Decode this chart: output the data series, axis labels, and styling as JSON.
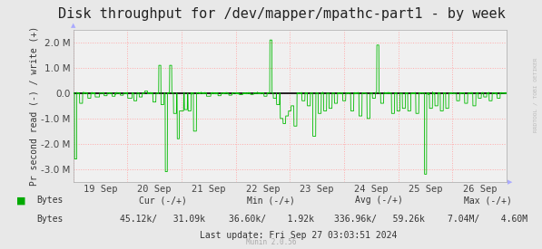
{
  "title": "Disk throughput for /dev/mapper/mpathc-part1 - by week",
  "ylabel": "Pr second read (-) / write (+)",
  "bg_color": "#e8e8e8",
  "plot_bg_color": "#f0f0f0",
  "grid_color": "#ffaaaa",
  "line_color": "#00bb00",
  "zero_line_color": "#000000",
  "ylim": [
    -3500000,
    2500000
  ],
  "yticks": [
    -3000000,
    -2000000,
    -1000000,
    0,
    1000000,
    2000000
  ],
  "ytick_labels": [
    "-3.0 M",
    "-2.0 M",
    "-1.0 M",
    "0.0",
    "1.0 M",
    "2.0 M"
  ],
  "xtick_labels": [
    "19 Sep",
    "20 Sep",
    "21 Sep",
    "22 Sep",
    "23 Sep",
    "24 Sep",
    "25 Sep",
    "26 Sep"
  ],
  "legend_label": "Bytes",
  "legend_color": "#00aa00",
  "cur_label": "Cur (-/+)",
  "min_label": "Min (-/+)",
  "avg_label": "Avg (-/+)",
  "max_label": "Max (-/+)",
  "cur_val": "45.12k/   31.09k",
  "min_val": "36.60k/    1.92k",
  "avg_val": "336.96k/   59.26k",
  "max_val": "7.04M/    4.60M",
  "last_update": "Last update: Fri Sep 27 03:03:51 2024",
  "munin_text": "Munin 2.0.56",
  "rrdtool_text": "RRDTOOL / TOBI OETIKER",
  "title_fontsize": 11,
  "tick_fontsize": 7.5,
  "footer_fontsize": 7
}
